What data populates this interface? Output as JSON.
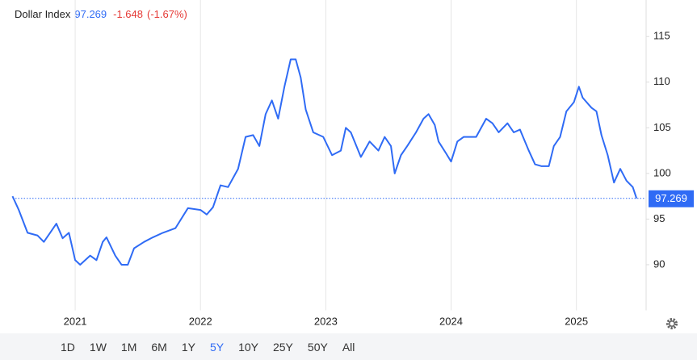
{
  "chart_data": {
    "type": "line",
    "title": "Dollar Index",
    "change": "-1.648",
    "change_pct": "(-1.67%)",
    "series": [
      {
        "name": "Dollar Index",
        "color": "#2f6bf5",
        "x": [
          2020.5,
          2020.55,
          2020.62,
          2020.7,
          2020.75,
          2020.8,
          2020.85,
          2020.9,
          2020.95,
          2021.0,
          2021.04,
          2021.08,
          2021.12,
          2021.17,
          2021.22,
          2021.25,
          2021.32,
          2021.37,
          2021.42,
          2021.47,
          2021.55,
          2021.62,
          2021.7,
          2021.8,
          2021.9,
          2022.0,
          2022.05,
          2022.1,
          2022.16,
          2022.22,
          2022.3,
          2022.36,
          2022.42,
          2022.47,
          2022.52,
          2022.57,
          2022.62,
          2022.67,
          2022.72,
          2022.76,
          2022.8,
          2022.84,
          2022.9,
          2022.98,
          2023.05,
          2023.12,
          2023.16,
          2023.2,
          2023.28,
          2023.35,
          2023.42,
          2023.47,
          2023.52,
          2023.55,
          2023.6,
          2023.65,
          2023.72,
          2023.78,
          2023.82,
          2023.87,
          2023.9,
          2023.96,
          2024.0,
          2024.05,
          2024.1,
          2024.2,
          2024.28,
          2024.33,
          2024.38,
          2024.45,
          2024.5,
          2024.55,
          2024.62,
          2024.67,
          2024.72,
          2024.78,
          2024.82,
          2024.87,
          2024.92,
          2024.98,
          2025.02,
          2025.05,
          2025.12,
          2025.16,
          2025.2,
          2025.25,
          2025.3,
          2025.35,
          2025.4,
          2025.45,
          2025.48
        ],
        "values": [
          97.5,
          96,
          93.5,
          93.2,
          92.5,
          93.5,
          94.5,
          92.9,
          93.5,
          90.5,
          90,
          90.5,
          91,
          90.5,
          92.5,
          93,
          91,
          90,
          90,
          91.8,
          92.5,
          93,
          93.5,
          94,
          96.2,
          96,
          95.5,
          96.3,
          98.7,
          98.5,
          100.5,
          104,
          104.2,
          103,
          106.5,
          108,
          106,
          109.5,
          112.5,
          112.5,
          110.5,
          107,
          104.5,
          104,
          102,
          102.5,
          105,
          104.5,
          101.8,
          103.5,
          102.5,
          104,
          103,
          100,
          102,
          103,
          104.5,
          106,
          106.5,
          105.3,
          103.5,
          102.2,
          101.3,
          103.5,
          104,
          104,
          106,
          105.5,
          104.5,
          105.5,
          104.5,
          104.8,
          102.5,
          101,
          100.8,
          100.8,
          103,
          104,
          106.8,
          107.8,
          109.5,
          108.3,
          107.2,
          106.8,
          104.2,
          102,
          99,
          100.5,
          99.2,
          98.5,
          97.269
        ]
      }
    ],
    "xlim": [
      2020.5,
      2025.55
    ],
    "xticks": [
      2021,
      2022,
      2023,
      2024,
      2025
    ],
    "ylim": [
      85,
      119
    ],
    "yticks": [
      90,
      95,
      100,
      105,
      110,
      115
    ],
    "grid": true,
    "ranges": [
      "1D",
      "1W",
      "1M",
      "6M",
      "1Y",
      "5Y",
      "10Y",
      "25Y",
      "50Y",
      "All"
    ],
    "active_range": "5Y"
  }
}
